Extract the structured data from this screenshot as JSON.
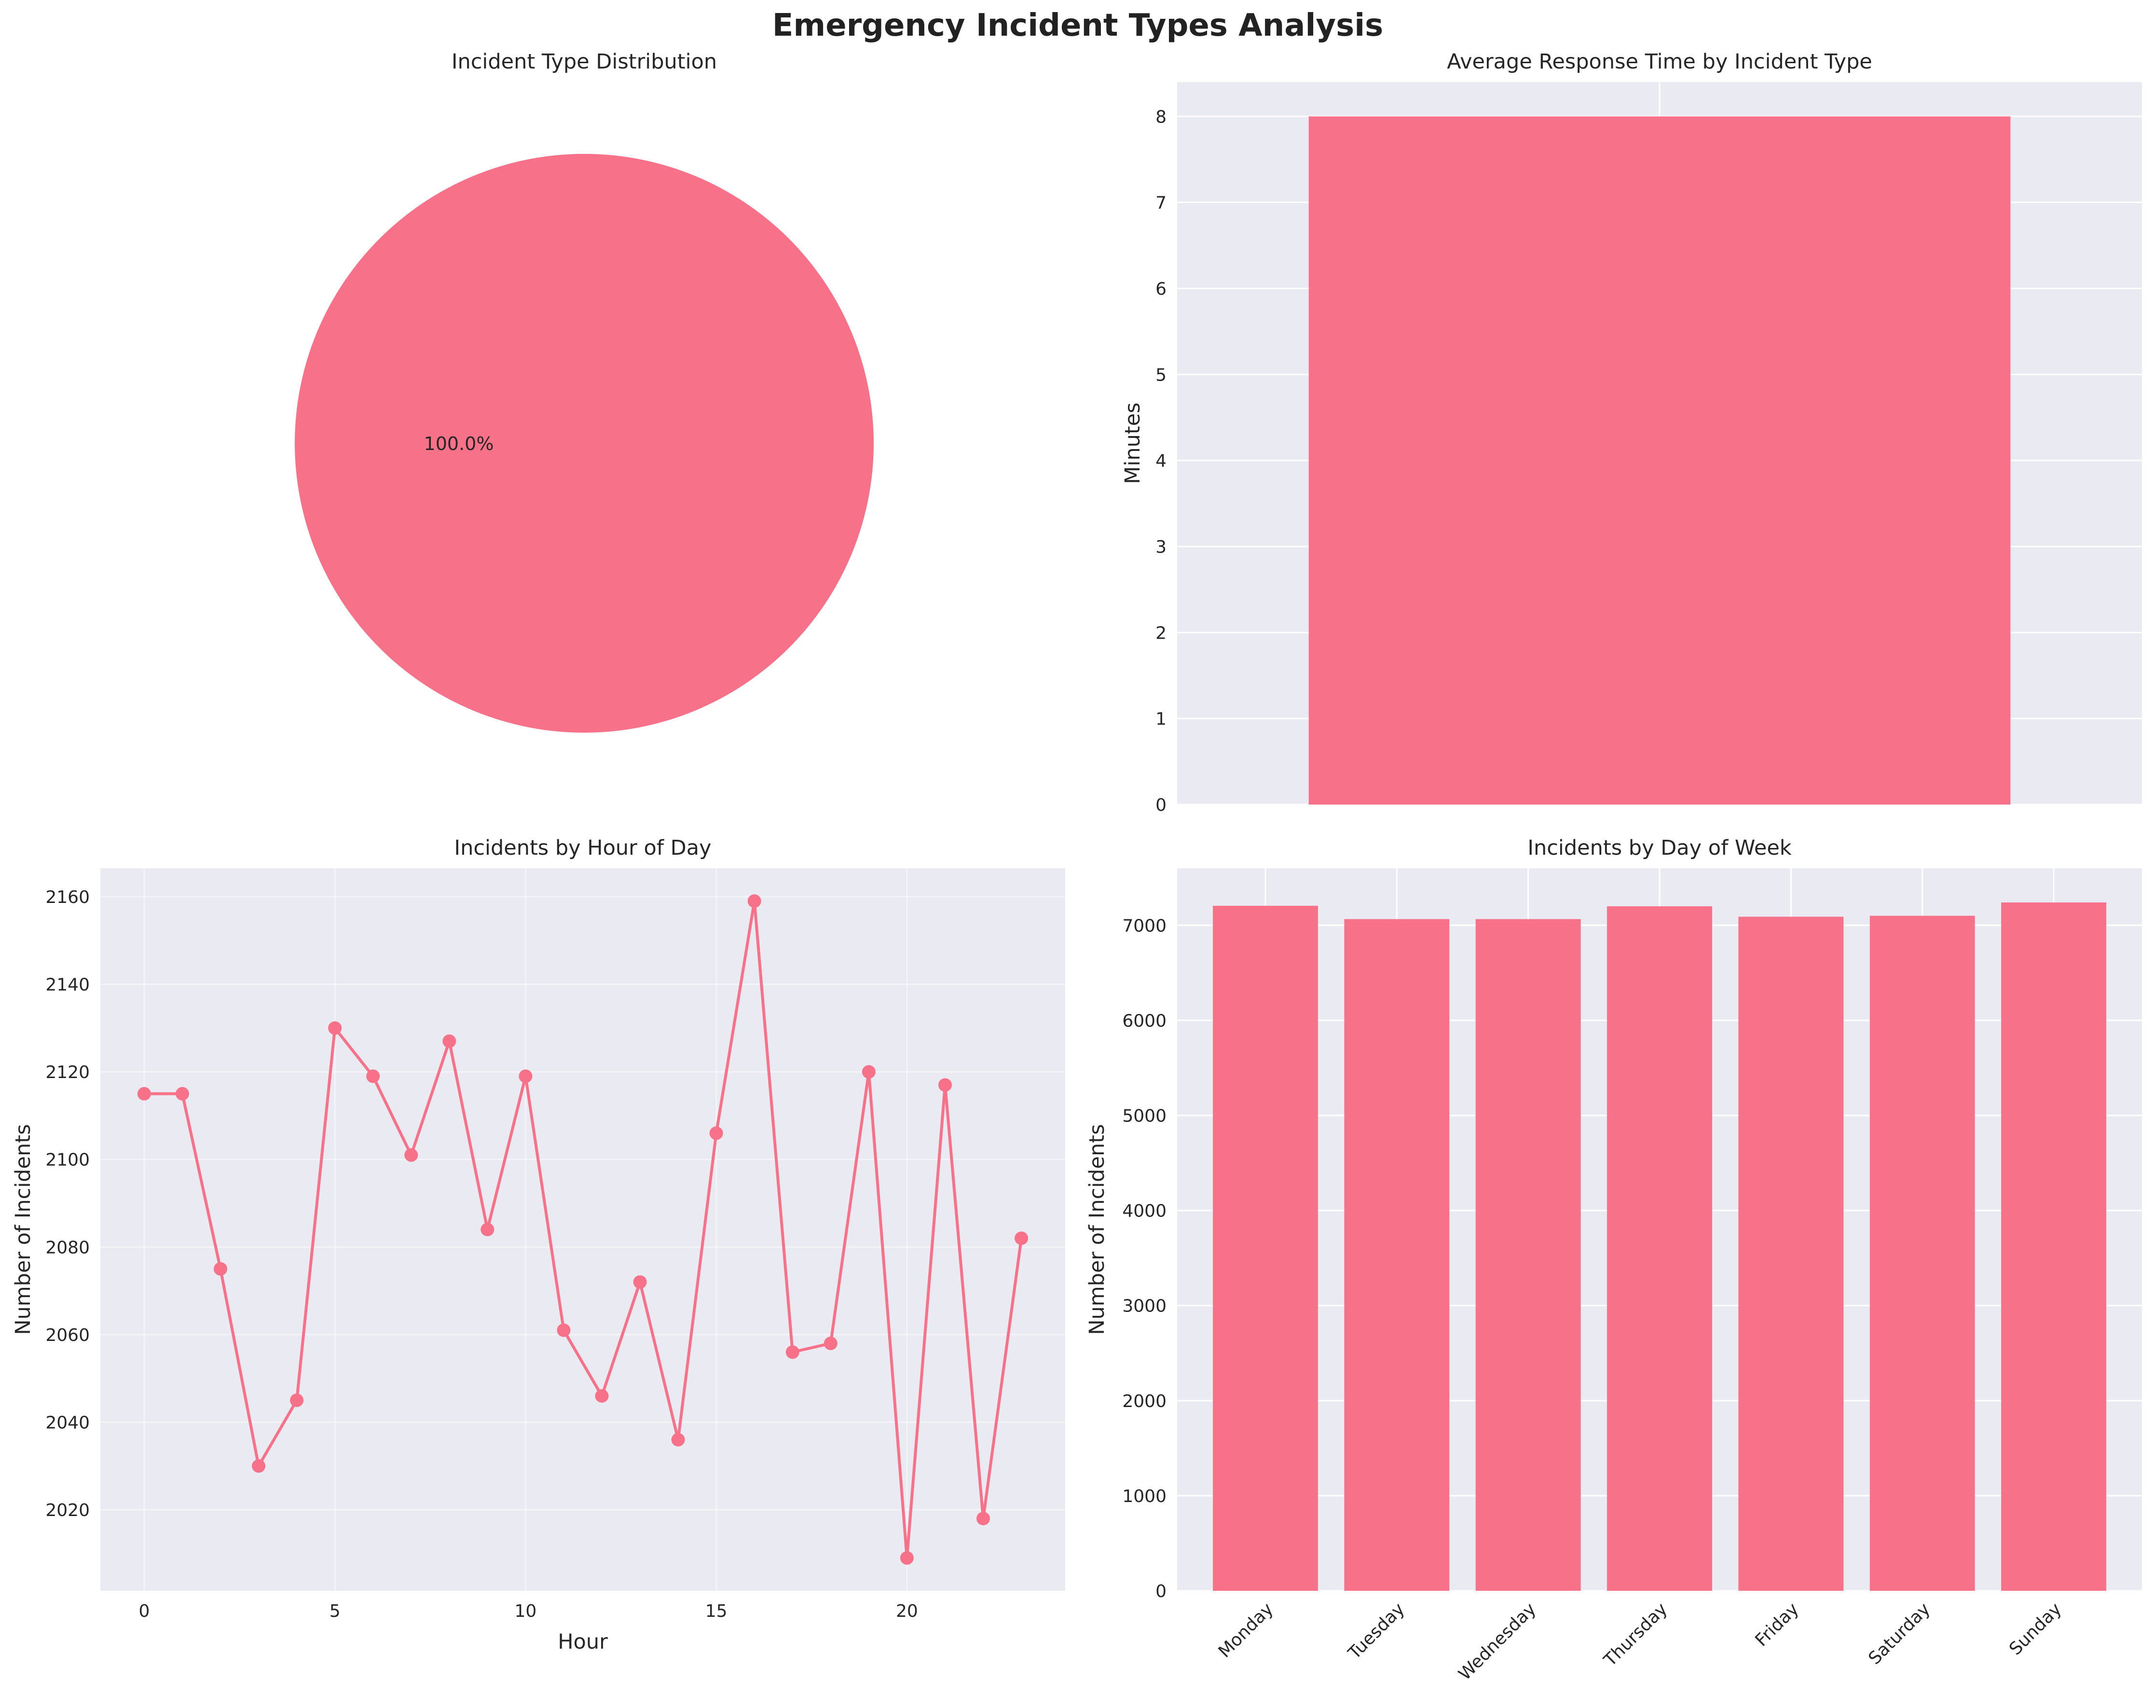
{
  "figure": {
    "title": "Emergency Incident Types Analysis"
  },
  "colors": {
    "accent": "#f77189",
    "axes_bg": "#eaeaf2",
    "grid": "#ffffff",
    "text": "#262626"
  },
  "chart_data": [
    {
      "type": "pie",
      "title": "Incident Type Distribution",
      "slices": [
        {
          "label": "",
          "value": 100.0,
          "pct_label": "100.0%"
        }
      ]
    },
    {
      "type": "bar",
      "title": "Average Response Time by Incident Type",
      "xlabel": "",
      "ylabel": "Minutes",
      "categories": [
        ""
      ],
      "values": [
        8.0
      ],
      "ylim": [
        0,
        8.4
      ],
      "yticks": [
        0,
        1,
        2,
        3,
        4,
        5,
        6,
        7,
        8
      ],
      "grid": true
    },
    {
      "type": "line",
      "title": "Incidents by Hour of Day",
      "xlabel": "Hour",
      "ylabel": "Number of Incidents",
      "x": [
        0,
        1,
        2,
        3,
        4,
        5,
        6,
        7,
        8,
        9,
        10,
        11,
        12,
        13,
        14,
        15,
        16,
        17,
        18,
        19,
        20,
        21,
        22,
        23
      ],
      "y": [
        2115,
        2115,
        2075,
        2030,
        2045,
        2130,
        2119,
        2101,
        2127,
        2084,
        2119,
        2061,
        2046,
        2072,
        2036,
        2106,
        2159,
        2056,
        2058,
        2120,
        2009,
        2117,
        2018,
        2082
      ],
      "xlim": [
        -1.15,
        24.15
      ],
      "ylim": [
        2001.5,
        2166.5
      ],
      "xticks": [
        0,
        5,
        10,
        15,
        20
      ],
      "yticks": [
        2020,
        2040,
        2060,
        2080,
        2100,
        2120,
        2140,
        2160
      ],
      "grid": true
    },
    {
      "type": "bar",
      "title": "Incidents by Day of Week",
      "xlabel": "",
      "ylabel": "Number of Incidents",
      "categories": [
        "Monday",
        "Tuesday",
        "Wednesday",
        "Thursday",
        "Friday",
        "Saturday",
        "Sunday"
      ],
      "values": [
        7205,
        7065,
        7065,
        7200,
        7090,
        7100,
        7240
      ],
      "ylim": [
        0,
        7600
      ],
      "yticks": [
        0,
        1000,
        2000,
        3000,
        4000,
        5000,
        6000,
        7000
      ],
      "grid": true
    }
  ]
}
